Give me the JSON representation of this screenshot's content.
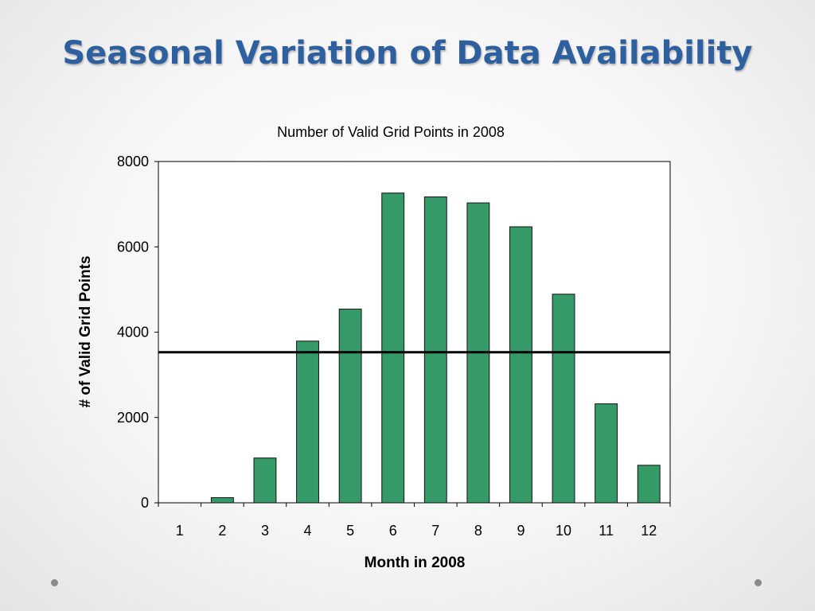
{
  "slide": {
    "title": "Seasonal Variation of Data Availability"
  },
  "colors": {
    "title": "#2e5f9e",
    "bar_fill": "#369a68",
    "bar_stroke": "#111111",
    "reference_line": "#000000"
  },
  "chart_data": {
    "type": "bar",
    "title": "Number of Valid Grid Points in 2008",
    "xlabel": "Month in 2008",
    "ylabel": "# of Valid Grid Points",
    "categories": [
      "1",
      "2",
      "3",
      "4",
      "5",
      "6",
      "7",
      "8",
      "9",
      "10",
      "11",
      "12"
    ],
    "values": [
      0,
      120,
      1050,
      3790,
      4540,
      7260,
      7170,
      7030,
      6470,
      4890,
      2320,
      880
    ],
    "ylim": [
      0,
      8000
    ],
    "yticks": [
      0,
      2000,
      4000,
      6000,
      8000
    ],
    "reference_line": 3530,
    "grid": false
  }
}
